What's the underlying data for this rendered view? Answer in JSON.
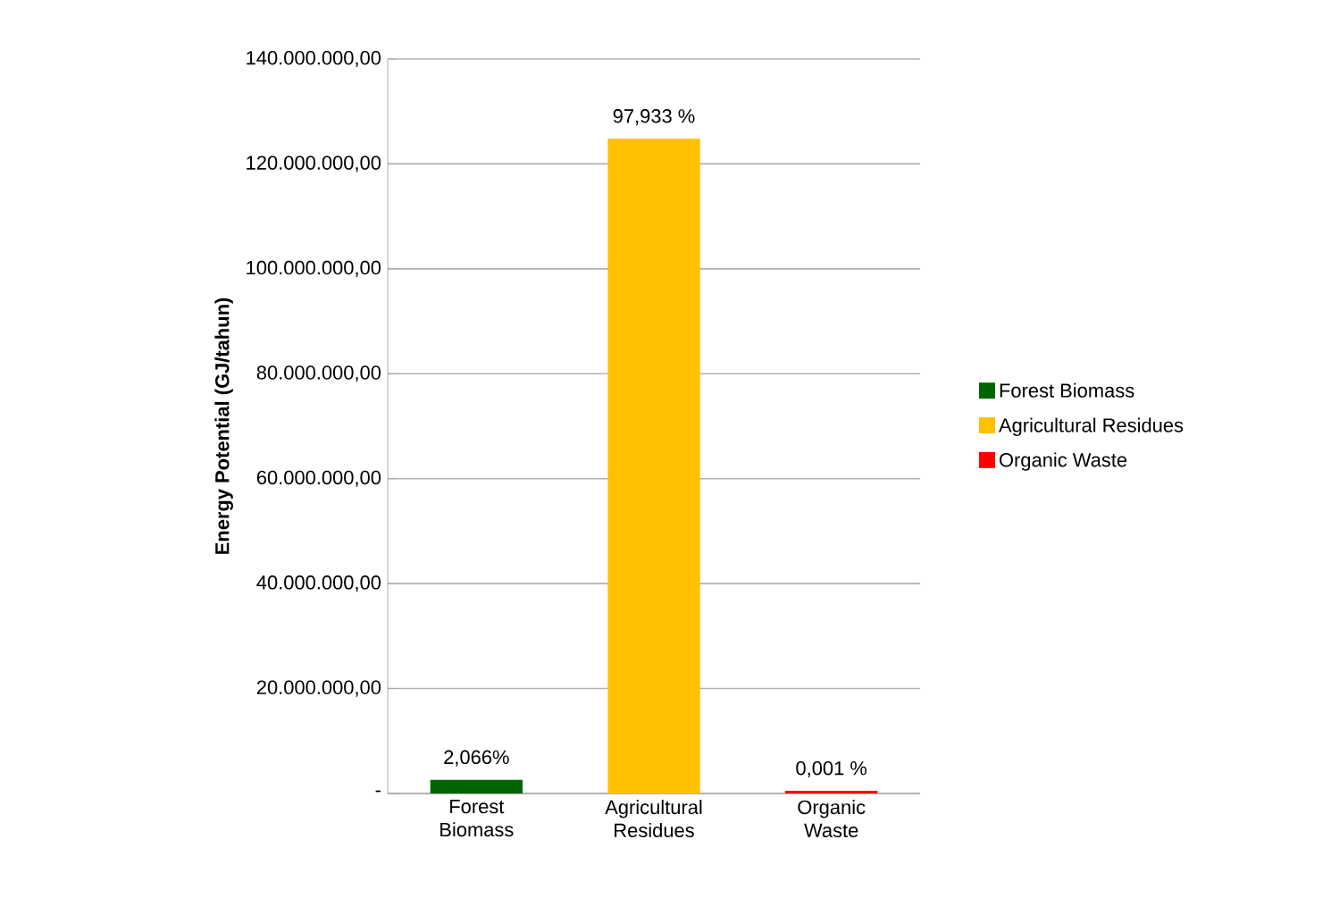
{
  "chart_data": {
    "type": "bar",
    "ylabel": "Energy Potential (GJ/tahun)",
    "categories": [
      "Forest Biomass",
      "Agricultural Residues",
      "Organic Waste"
    ],
    "series": [
      {
        "name": "Forest Biomass",
        "color": "#006400",
        "values": [
          2600000,
          null,
          null
        ]
      },
      {
        "name": "Agricultural Residues",
        "color": "#ffc000",
        "values": [
          null,
          124800000,
          null
        ]
      },
      {
        "name": "Organic Waste",
        "color": "#ff0000",
        "values": [
          null,
          null,
          500000
        ]
      }
    ],
    "annotations": [
      {
        "text": "2,066%",
        "x": "Forest Biomass",
        "y": 2600000
      },
      {
        "text": "97,933 %",
        "x": "Agricultural Residues",
        "y": 124800000
      },
      {
        "text": "0,001 %",
        "x": "Organic Waste",
        "y": 500000
      }
    ],
    "ylim": [
      0,
      140000000
    ],
    "yticks": [
      {
        "value": 0,
        "label": "-"
      },
      {
        "value": 20000000,
        "label": "20.000.000,00"
      },
      {
        "value": 40000000,
        "label": "40.000.000,00"
      },
      {
        "value": 60000000,
        "label": "60.000.000,00"
      },
      {
        "value": 80000000,
        "label": "80.000.000,00"
      },
      {
        "value": 100000000,
        "label": "100.000.000,00"
      },
      {
        "value": 120000000,
        "label": "120.000.000,00"
      },
      {
        "value": 140000000,
        "label": "140.000.000,00"
      }
    ],
    "grid": "y",
    "legend": "right"
  }
}
